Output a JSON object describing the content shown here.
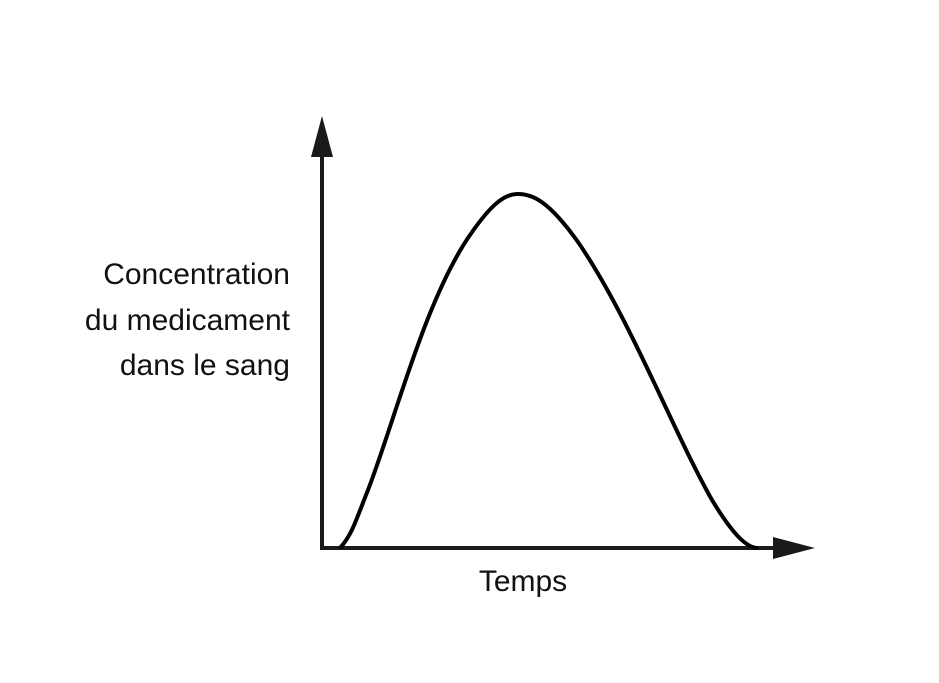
{
  "axes": {
    "y_label": [
      "Concentration",
      "du medicament",
      "dans le sang"
    ],
    "x_label": "Temps"
  }
}
